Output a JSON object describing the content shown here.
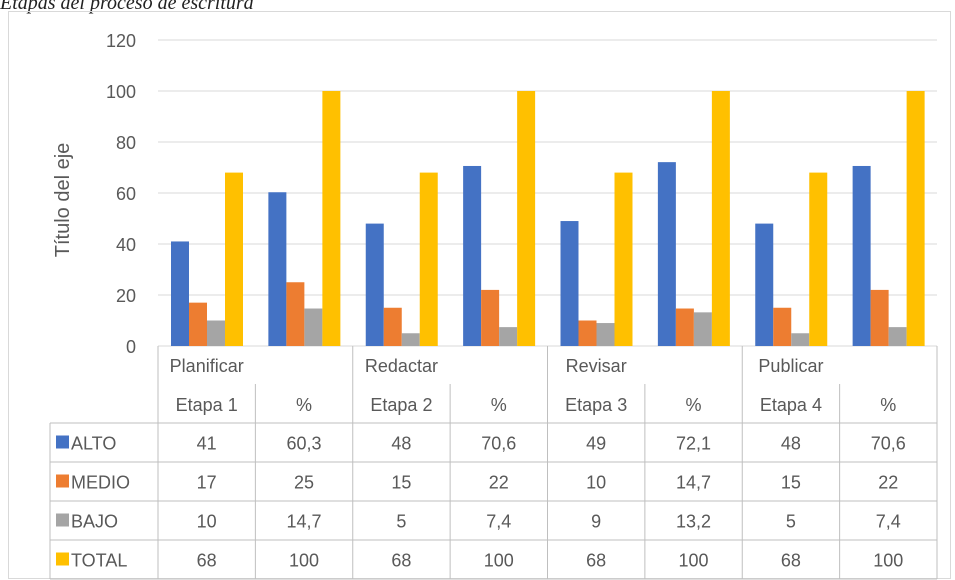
{
  "caption": "Etapas del proceso de escritura",
  "chart_data": {
    "type": "bar",
    "ylabel": "Título del eje",
    "ylim": [
      0,
      120
    ],
    "yticks": [
      0,
      20,
      40,
      60,
      80,
      100,
      120
    ],
    "grid": true,
    "legend_placement": "data-table",
    "category_groups": [
      "Planificar",
      "",
      "Redactar",
      "",
      "Revisar",
      "",
      "Publicar",
      ""
    ],
    "categories": [
      "Etapa 1",
      "%",
      "Etapa 2",
      "%",
      "Etapa 3",
      "%",
      "Etapa 4",
      "%"
    ],
    "series": [
      {
        "name": "ALTO",
        "color": "#4472c4",
        "values": [
          41,
          60.3,
          48,
          70.6,
          49,
          72.1,
          48,
          70.6
        ],
        "labels": [
          "41",
          "60,3",
          "48",
          "70,6",
          "49",
          "72,1",
          "48",
          "70,6"
        ]
      },
      {
        "name": "MEDIO",
        "color": "#ed7d31",
        "values": [
          17,
          25,
          15,
          22,
          10,
          14.7,
          15,
          22
        ],
        "labels": [
          "17",
          "25",
          "15",
          "22",
          "10",
          "14,7",
          "15",
          "22"
        ]
      },
      {
        "name": "BAJO",
        "color": "#a5a5a5",
        "values": [
          10,
          14.7,
          5,
          7.4,
          9,
          13.2,
          5,
          7.4
        ],
        "labels": [
          "10",
          "14,7",
          "5",
          "7,4",
          "9",
          "13,2",
          "5",
          "7,4"
        ]
      },
      {
        "name": "TOTAL",
        "color": "#ffc000",
        "values": [
          68,
          100,
          68,
          100,
          68,
          100,
          68,
          100
        ],
        "labels": [
          "68",
          "100",
          "68",
          "100",
          "68",
          "100",
          "68",
          "100"
        ]
      }
    ]
  }
}
